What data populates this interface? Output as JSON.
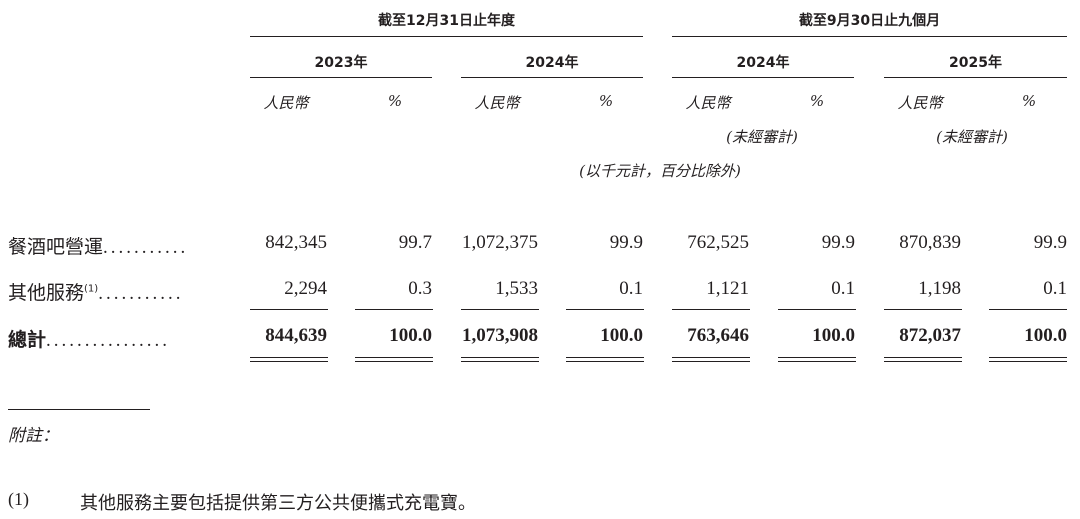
{
  "header": {
    "group1": "截至12月31日止年度",
    "group2": "截至9月30日止九個月",
    "years": [
      "2023年",
      "2024年",
      "2024年",
      "2025年"
    ],
    "currency": "人民幣",
    "percent": "%",
    "unaudited": "(未經審計)",
    "unit_note": "(以千元計，百分比除外)"
  },
  "rows": [
    {
      "label": "餐酒吧營運",
      "sup": "",
      "dots": "...........",
      "values": [
        "842,345",
        "99.7",
        "1,072,375",
        "99.9",
        "762,525",
        "99.9",
        "870,839",
        "99.9"
      ]
    },
    {
      "label": "其他服務",
      "sup": "(1)",
      "dots": "...........",
      "values": [
        "2,294",
        "0.3",
        "1,533",
        "0.1",
        "1,121",
        "0.1",
        "1,198",
        "0.1"
      ]
    },
    {
      "label": "總計",
      "sup": "",
      "dots": "................",
      "values": [
        "844,639",
        "100.0",
        "1,073,908",
        "100.0",
        "763,646",
        "100.0",
        "872,037",
        "100.0"
      ]
    }
  ],
  "notes": {
    "heading": "附註：",
    "items": [
      {
        "num": "(1)",
        "text": "其他服務主要包括提供第三方公共便攜式充電寶。"
      }
    ]
  }
}
